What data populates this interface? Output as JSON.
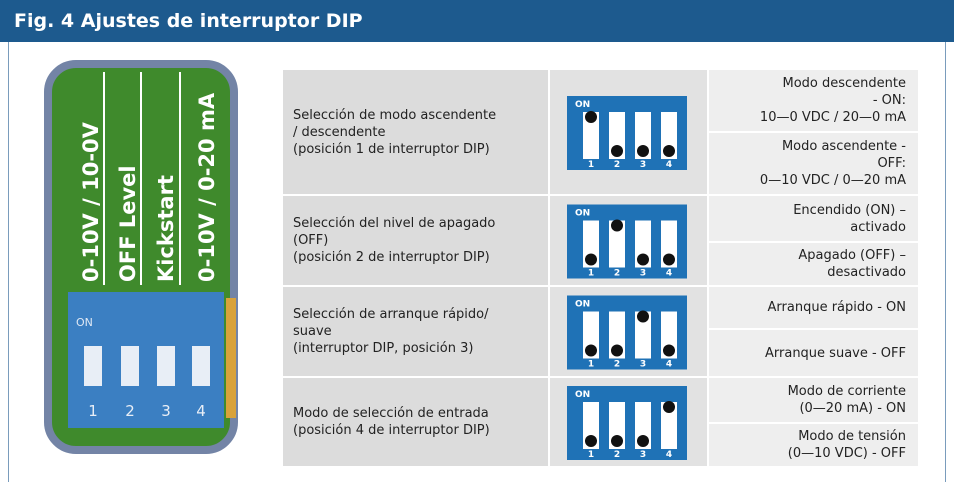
{
  "header": {
    "title": "Fig. 4 Ajustes de interruptor DIP"
  },
  "board": {
    "labels": [
      "0-10V / 10-0V",
      "OFF Level",
      "Kickstart",
      "0-10V / 0-20 mA"
    ],
    "switch_on": "ON",
    "switch_numbers": [
      "1",
      "2",
      "3",
      "4"
    ]
  },
  "dip": {
    "on": "ON",
    "numbers": [
      "1",
      "2",
      "3",
      "4"
    ]
  },
  "table": {
    "rows": [
      {
        "description": "Selección de modo ascendente\n/ descendente\n (posición 1 de interruptor DIP)",
        "options": [
          "Modo descendente\n- ON:\n10—0 VDC / 20—0 mA",
          "Modo ascendente -\nOFF:\n0—10 VDC / 0—20 mA"
        ]
      },
      {
        "description": "Selección del nivel de apagado\n(OFF)\n(posición 2 de interruptor DIP)",
        "options": [
          "Encendido (ON) –\nactivado",
          "Apagado (OFF) –\ndesactivado"
        ]
      },
      {
        "description": "Selección de arranque rápido/\nsuave\n(interruptor DIP, posición 3)",
        "options": [
          "Arranque rápido - ON",
          "Arranque suave - OFF"
        ]
      },
      {
        "description": "Modo de selección de entrada\n(posición 4 de interruptor DIP)",
        "options": [
          "Modo de corriente\n(0—20 mA) - ON",
          "Modo de tensión\n(0—10 VDC) - OFF"
        ]
      }
    ]
  }
}
